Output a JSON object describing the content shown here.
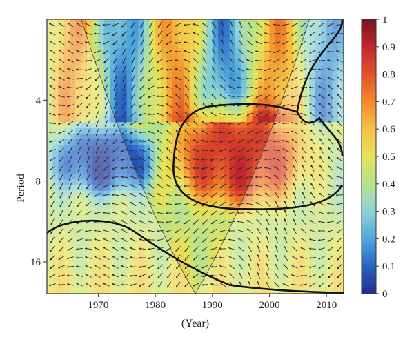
{
  "chart_data": {
    "type": "heatmap",
    "title": "",
    "xlabel": "(Year)",
    "ylabel": "Period",
    "x_range": [
      1961,
      2013
    ],
    "y_range": [
      2,
      21
    ],
    "y_scale": "log2",
    "y_direction": "increasing downward",
    "x_ticks": [
      1970,
      1980,
      1990,
      2000,
      2010
    ],
    "y_ticks": [
      4,
      8,
      16
    ],
    "grid": false,
    "colorbar": {
      "ticks": [
        0,
        0.1,
        0.2,
        0.3,
        0.4,
        0.5,
        0.6,
        0.7,
        0.8,
        0.9,
        1
      ],
      "range": [
        0,
        1
      ],
      "colors": [
        "#1f2f8a",
        "#2a62c4",
        "#4fa8dc",
        "#8fd3d4",
        "#b8e28c",
        "#e6e35a",
        "#f5c242",
        "#f28a2c",
        "#e2502a",
        "#c1272d",
        "#7a1420"
      ]
    },
    "features": [
      {
        "kind": "high-coherence region",
        "x": [
          1983,
          2006
        ],
        "y": [
          4.2,
          10
        ],
        "value": 0.85
      },
      {
        "kind": "low-coherence region",
        "x": [
          1962,
          1980
        ],
        "y": [
          5,
          9
        ],
        "value": 0.05
      },
      {
        "kind": "significance contour",
        "x": [
          1961,
          2013
        ],
        "y": [
          11,
          21
        ]
      }
    ]
  }
}
